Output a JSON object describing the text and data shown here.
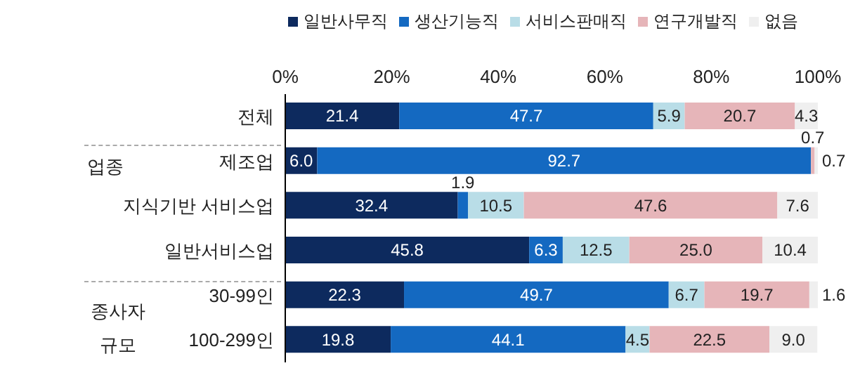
{
  "chart_data": {
    "type": "bar",
    "orientation": "horizontal",
    "stacked": true,
    "categories": [
      "전체",
      "제조업",
      "지식기반 서비스업",
      "일반서비스업",
      "30-99인",
      "100-299인"
    ],
    "series": [
      {
        "name": "일반사무직",
        "color": "#0d2a5e",
        "values": [
          21.4,
          6.0,
          32.4,
          45.8,
          22.3,
          19.8
        ],
        "value_labels": [
          "21.4",
          "6.0",
          "32.4",
          "45.8",
          "22.3",
          "19.8"
        ]
      },
      {
        "name": "생산기능직",
        "color": "#1469c1",
        "values": [
          47.7,
          92.7,
          1.9,
          6.3,
          49.7,
          44.1
        ],
        "value_labels": [
          "47.7",
          "92.7",
          "1.9",
          "6.3",
          "49.7",
          "44.1"
        ]
      },
      {
        "name": "서비스판매직",
        "color": "#b9dde7",
        "values": [
          5.9,
          null,
          10.5,
          12.5,
          6.7,
          4.5
        ],
        "value_labels": [
          "5.9",
          null,
          "10.5",
          "12.5",
          "6.7",
          "4.5"
        ]
      },
      {
        "name": "연구개발직",
        "color": "#e6b5b9",
        "values": [
          20.7,
          0.7,
          47.6,
          25.0,
          19.7,
          22.5
        ],
        "value_labels": [
          "20.7",
          "0.7",
          "47.6",
          "25.0",
          "19.7",
          "22.5"
        ]
      },
      {
        "name": "없음",
        "color": "#efefef",
        "values": [
          4.3,
          0.7,
          7.6,
          10.4,
          1.6,
          9.0
        ],
        "value_labels": [
          "4.3",
          "0.7",
          "7.6",
          "10.4",
          "1.6",
          "9.0"
        ]
      }
    ],
    "xlim": [
      0,
      100
    ],
    "xticks": [
      {
        "value": 0,
        "label": "0%"
      },
      {
        "value": 20,
        "label": "20%"
      },
      {
        "value": 40,
        "label": "40%"
      },
      {
        "value": 60,
        "label": "60%"
      },
      {
        "value": 80,
        "label": "80%"
      },
      {
        "value": 100,
        "label": "100%"
      }
    ],
    "legend": "top",
    "annotations": [
      "업종",
      "종사자 규모"
    ]
  }
}
